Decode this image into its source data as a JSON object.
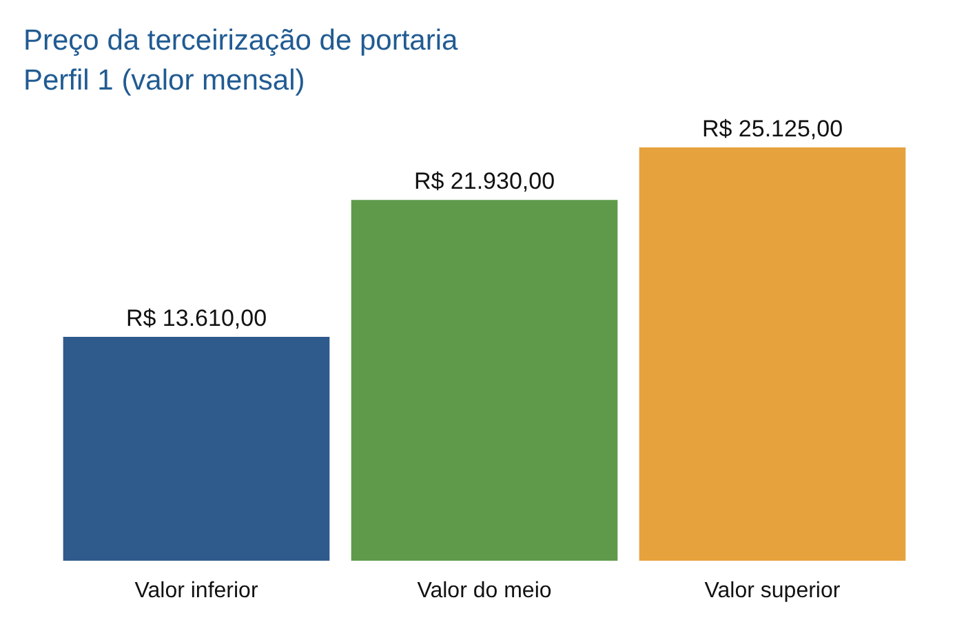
{
  "chart_data": {
    "type": "bar",
    "title": "Preço da terceirização de portaria",
    "subtitle": "Perfil 1 (valor mensal)",
    "categories": [
      "Valor inferior",
      "Valor do meio",
      "Valor superior"
    ],
    "values": [
      13610,
      21930,
      25125
    ],
    "colors": [
      "#2e5a8c",
      "#5e9a4a",
      "#e6a23c"
    ],
    "value_labels": [
      "R$ 13.610,00",
      "R$ 21.930,00",
      "R$ 25.125,00"
    ],
    "relative": false
  }
}
